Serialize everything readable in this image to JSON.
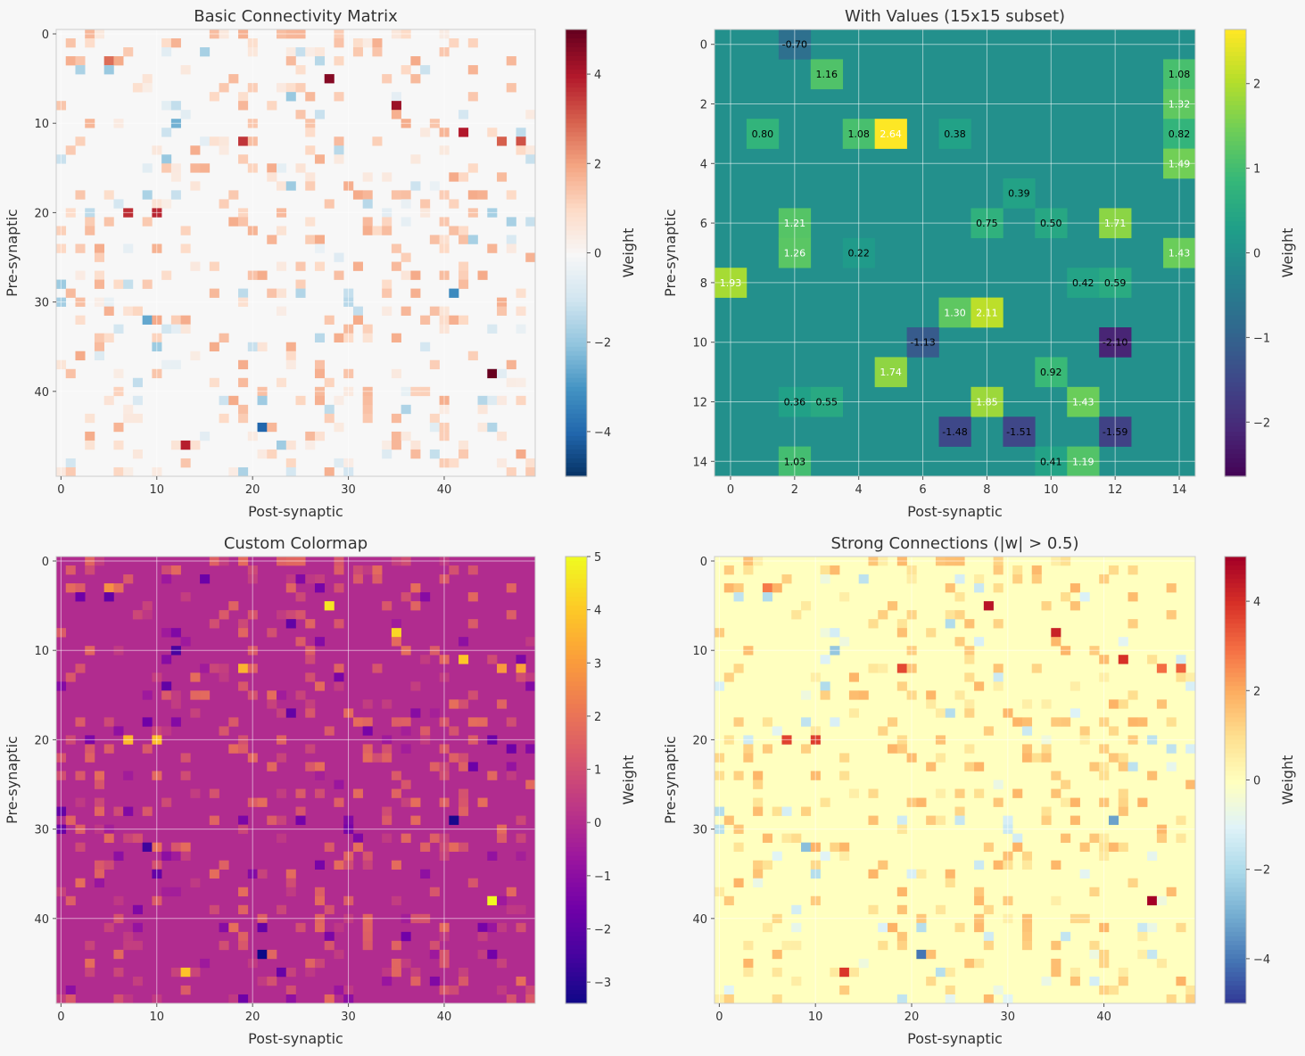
{
  "chart_data": [
    {
      "type": "heatmap",
      "title": "Basic Connectivity Matrix",
      "xlabel": "Post-synaptic",
      "ylabel": "Pre-synaptic",
      "size": 50,
      "density": 0.18,
      "seed": 11,
      "xticks": [
        0,
        10,
        20,
        30,
        40
      ],
      "yticks": [
        0,
        10,
        20,
        30,
        40
      ],
      "colormap": "RdBu_r",
      "vmin": -5,
      "vmax": 5,
      "colorbar": {
        "label": "Weight",
        "ticks": [
          4,
          2,
          0,
          -2,
          -4
        ],
        "tick_labels": [
          "4",
          "2",
          "0",
          "−2",
          "−4"
        ]
      },
      "strong": [
        {
          "row": 5,
          "col": 28,
          "value": 4.6
        },
        {
          "row": 8,
          "col": 35,
          "value": 4.3
        },
        {
          "row": 11,
          "col": 42,
          "value": 4.0
        },
        {
          "row": 12,
          "col": 19,
          "value": 3.6
        },
        {
          "row": 20,
          "col": 7,
          "value": 3.7
        },
        {
          "row": 20,
          "col": 10,
          "value": 3.8
        },
        {
          "row": 38,
          "col": 45,
          "value": 5.0
        },
        {
          "row": 46,
          "col": 13,
          "value": 3.9
        },
        {
          "row": 3,
          "col": 5,
          "value": 2.8
        },
        {
          "row": 12,
          "col": 46,
          "value": 3.0
        },
        {
          "row": 12,
          "col": 48,
          "value": 3.2
        },
        {
          "row": 44,
          "col": 21,
          "value": -4.0
        },
        {
          "row": 29,
          "col": 41,
          "value": -3.2
        },
        {
          "row": 32,
          "col": 9,
          "value": -2.6
        },
        {
          "row": 10,
          "col": 12,
          "value": -2.4
        },
        {
          "row": 41,
          "col": 21,
          "value": -1.8
        }
      ]
    },
    {
      "type": "heatmap",
      "title": "With Values (15x15 subset)",
      "xlabel": "Post-synaptic",
      "ylabel": "Pre-synaptic",
      "size": 15,
      "xticks": [
        0,
        2,
        4,
        6,
        8,
        10,
        12,
        14
      ],
      "yticks": [
        0,
        2,
        4,
        6,
        8,
        10,
        12,
        14
      ],
      "colormap": "viridis",
      "vmin": -2.64,
      "vmax": 2.64,
      "colorbar": {
        "label": "Weight",
        "ticks": [
          2,
          1,
          0,
          -1,
          -2
        ],
        "tick_labels": [
          "2",
          "1",
          "0",
          "−1",
          "−2"
        ]
      },
      "cells": [
        {
          "row": 0,
          "col": 2,
          "value": -0.7,
          "label": "-0.70"
        },
        {
          "row": 1,
          "col": 3,
          "value": 1.16,
          "label": "1.16"
        },
        {
          "row": 1,
          "col": 14,
          "value": 1.08,
          "label": "1.08"
        },
        {
          "row": 2,
          "col": 14,
          "value": 1.32,
          "label": "1.32"
        },
        {
          "row": 3,
          "col": 1,
          "value": 0.8,
          "label": "0.80"
        },
        {
          "row": 3,
          "col": 4,
          "value": 1.08,
          "label": "1.08"
        },
        {
          "row": 3,
          "col": 5,
          "value": 2.64,
          "label": "2.64"
        },
        {
          "row": 3,
          "col": 7,
          "value": 0.38,
          "label": "0.38"
        },
        {
          "row": 3,
          "col": 14,
          "value": 0.82,
          "label": "0.82"
        },
        {
          "row": 4,
          "col": 14,
          "value": 1.49,
          "label": "1.49"
        },
        {
          "row": 5,
          "col": 9,
          "value": 0.39,
          "label": "0.39"
        },
        {
          "row": 6,
          "col": 2,
          "value": 1.21,
          "label": "1.21"
        },
        {
          "row": 6,
          "col": 8,
          "value": 0.75,
          "label": "0.75"
        },
        {
          "row": 6,
          "col": 10,
          "value": 0.5,
          "label": "0.50"
        },
        {
          "row": 6,
          "col": 12,
          "value": 1.71,
          "label": "1.71"
        },
        {
          "row": 7,
          "col": 2,
          "value": 1.26,
          "label": "1.26"
        },
        {
          "row": 7,
          "col": 4,
          "value": 0.22,
          "label": "0.22"
        },
        {
          "row": 7,
          "col": 14,
          "value": 1.43,
          "label": "1.43"
        },
        {
          "row": 8,
          "col": 0,
          "value": 1.93,
          "label": "1.93"
        },
        {
          "row": 8,
          "col": 11,
          "value": 0.42,
          "label": "0.42"
        },
        {
          "row": 8,
          "col": 12,
          "value": 0.59,
          "label": "0.59"
        },
        {
          "row": 9,
          "col": 7,
          "value": 1.3,
          "label": "1.30"
        },
        {
          "row": 9,
          "col": 8,
          "value": 2.11,
          "label": "2.11"
        },
        {
          "row": 10,
          "col": 6,
          "value": -1.13,
          "label": "-1.13"
        },
        {
          "row": 10,
          "col": 12,
          "value": -2.1,
          "label": "-2.10"
        },
        {
          "row": 11,
          "col": 5,
          "value": 1.74,
          "label": "1.74"
        },
        {
          "row": 11,
          "col": 10,
          "value": 0.92,
          "label": "0.92"
        },
        {
          "row": 12,
          "col": 2,
          "value": 0.36,
          "label": "0.36"
        },
        {
          "row": 12,
          "col": 3,
          "value": 0.55,
          "label": "0.55"
        },
        {
          "row": 12,
          "col": 8,
          "value": 1.85,
          "label": "1.85"
        },
        {
          "row": 12,
          "col": 11,
          "value": 1.43,
          "label": "1.43"
        },
        {
          "row": 13,
          "col": 7,
          "value": -1.48,
          "label": "-1.48"
        },
        {
          "row": 13,
          "col": 9,
          "value": -1.51,
          "label": "-1.51"
        },
        {
          "row": 13,
          "col": 12,
          "value": -1.59,
          "label": "-1.59"
        },
        {
          "row": 14,
          "col": 2,
          "value": 1.03,
          "label": "1.03"
        },
        {
          "row": 14,
          "col": 10,
          "value": 0.41,
          "label": "0.41"
        },
        {
          "row": 14,
          "col": 11,
          "value": 1.19,
          "label": "1.19"
        }
      ]
    },
    {
      "type": "heatmap",
      "title": "Custom Colormap",
      "xlabel": "Post-synaptic",
      "ylabel": "Pre-synaptic",
      "size": 50,
      "density": 0.18,
      "seed": 11,
      "xticks": [
        0,
        10,
        20,
        30,
        40
      ],
      "yticks": [
        0,
        10,
        20,
        30,
        40
      ],
      "colormap": "plasma",
      "vmin": -3.4,
      "vmax": 5,
      "colorbar": {
        "label": "Weight",
        "ticks": [
          5,
          4,
          3,
          2,
          1,
          0,
          -1,
          -2,
          -3
        ],
        "tick_labels": [
          "5",
          "4",
          "3",
          "2",
          "1",
          "0",
          "−1",
          "−2",
          "−3"
        ]
      }
    },
    {
      "type": "heatmap",
      "title": "Strong Connections (|w| > 0.5)",
      "xlabel": "Post-synaptic",
      "ylabel": "Pre-synaptic",
      "size": 50,
      "density": 0.18,
      "seed": 11,
      "xticks": [
        0,
        10,
        20,
        30,
        40
      ],
      "yticks": [
        0,
        10,
        20,
        30,
        40
      ],
      "colormap": "RdYlBu_r",
      "vmin": -5,
      "vmax": 5,
      "colorbar": {
        "label": "Weight",
        "ticks": [
          4,
          2,
          0,
          -2,
          -4
        ],
        "tick_labels": [
          "4",
          "2",
          "0",
          "−2",
          "−4"
        ]
      }
    }
  ]
}
